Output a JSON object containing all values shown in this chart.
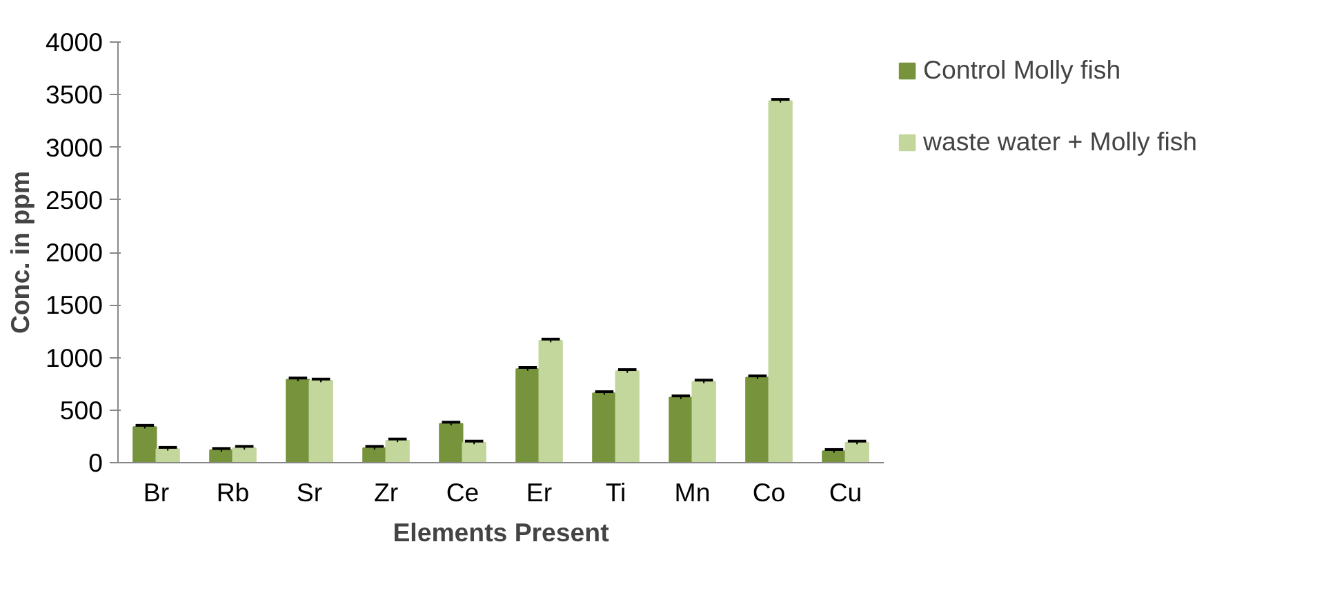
{
  "chart_data": {
    "type": "bar",
    "xlabel": "Elements Present",
    "ylabel": "Conc. in ppm",
    "categories": [
      "Br",
      "Rb",
      "Sr",
      "Zr",
      "Ce",
      "Er",
      "Ti",
      "Mn",
      "Co",
      "Cu"
    ],
    "series": [
      {
        "name": "Control Molly fish",
        "color": "#77933c",
        "values": [
          340,
          120,
          790,
          140,
          370,
          890,
          660,
          620,
          810,
          110
        ],
        "errors": [
          15,
          15,
          15,
          15,
          15,
          15,
          15,
          15,
          15,
          15
        ]
      },
      {
        "name": "waste water + Molly fish",
        "color": "#c3d69b",
        "values": [
          130,
          140,
          780,
          210,
          190,
          1160,
          870,
          770,
          3440,
          190
        ],
        "errors": [
          15,
          15,
          15,
          15,
          15,
          15,
          15,
          15,
          15,
          15
        ]
      }
    ],
    "ylim": [
      0,
      4000
    ],
    "yticks": [
      0,
      500,
      1000,
      1500,
      2000,
      2500,
      3000,
      3500,
      4000
    ],
    "grid": false,
    "legend": "top right"
  }
}
